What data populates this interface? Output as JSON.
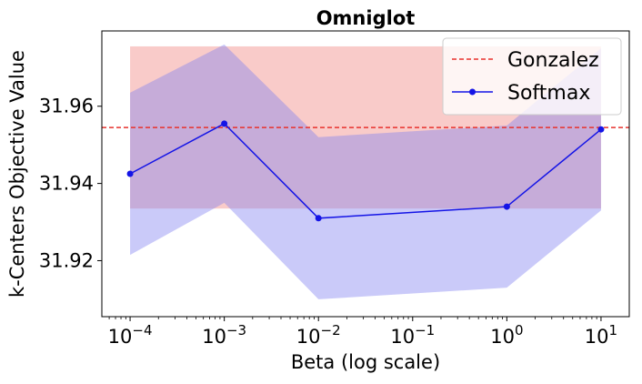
{
  "chart_data": {
    "type": "line",
    "title": "Omniglot",
    "xlabel": "Beta (log scale)",
    "ylabel": "k-Centers Objective Value",
    "xscale": "log",
    "xlim_log10": [
      -4.3,
      1.3
    ],
    "ylim": [
      31.9055,
      31.9795
    ],
    "yticks": [
      31.92,
      31.94,
      31.96
    ],
    "ytick_labels": [
      "31.92",
      "31.94",
      "31.96"
    ],
    "xticks_log10": [
      -4,
      -3,
      -2,
      -1,
      0,
      1
    ],
    "xtick_bases": [
      "10",
      "10",
      "10",
      "10",
      "10",
      "10"
    ],
    "xtick_exponents": [
      "−4",
      "−3",
      "−2",
      "−1",
      "0",
      "1"
    ],
    "legend_position": "top-right",
    "series": [
      {
        "name": "Gonzalez",
        "style": "dashed",
        "color": "#e8322d",
        "value": 31.9545,
        "band_color": "#f4a09c",
        "band_x": [
          0.0001,
          10
        ],
        "band_lower": 31.9335,
        "band_upper": 31.9755
      },
      {
        "name": "Softmax",
        "style": "solid-marker",
        "color": "#1414e6",
        "band_color": "#8080f0",
        "x": [
          0.0001,
          0.001,
          0.01,
          1,
          10
        ],
        "values": [
          31.9425,
          31.9555,
          31.931,
          31.934,
          31.954
        ],
        "lower": [
          31.9215,
          31.935,
          31.91,
          31.913,
          31.933
        ],
        "upper": [
          31.9635,
          31.976,
          31.952,
          31.955,
          31.975
        ]
      }
    ]
  }
}
